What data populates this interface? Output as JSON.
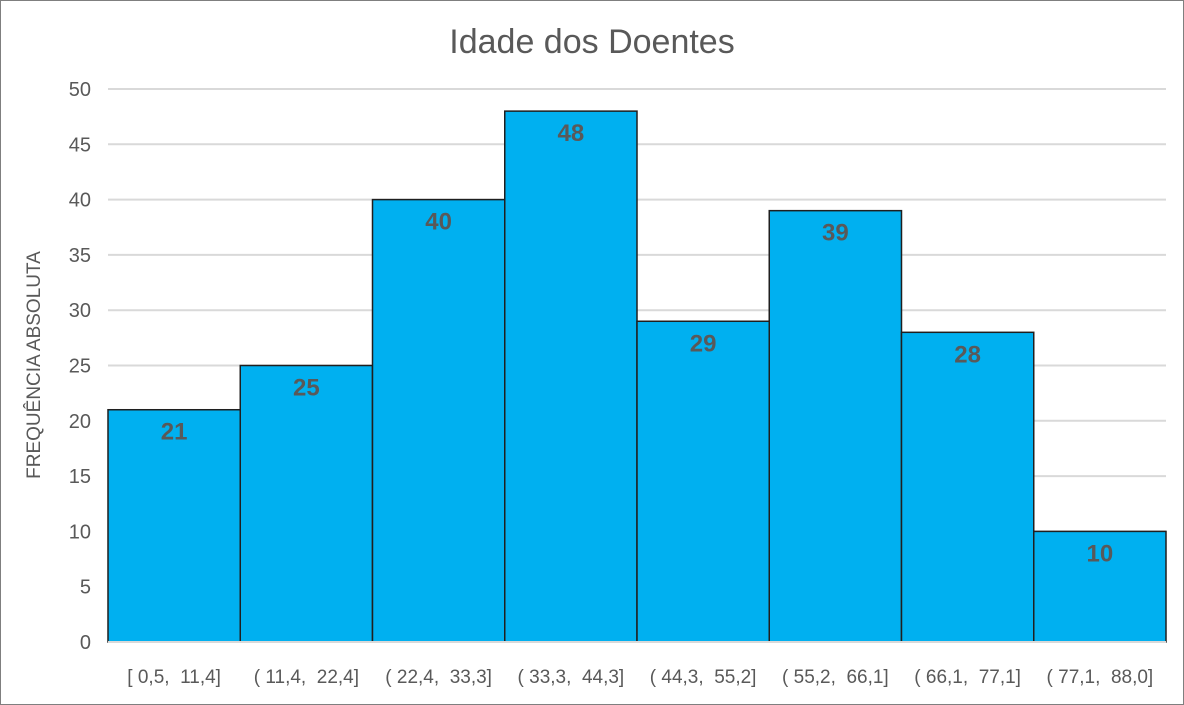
{
  "chart_data": {
    "type": "bar",
    "title": "Idade dos Doentes",
    "xlabel": "",
    "ylabel": "FREQUÊNCIA ABSOLUTA",
    "categories": [
      "[ 0,5,  11,4]",
      "( 11,4,  22,4]",
      "( 22,4,  33,3]",
      "( 33,3,  44,3]",
      "( 44,3,  55,2]",
      "( 55,2,  66,1]",
      "( 66,1,  77,1]",
      "( 77,1,  88,0]"
    ],
    "values": [
      21,
      25,
      40,
      48,
      29,
      39,
      28,
      10
    ],
    "ylim": [
      0,
      50
    ],
    "yticks": [
      0,
      5,
      10,
      15,
      20,
      25,
      30,
      35,
      40,
      45,
      50
    ],
    "grid": true,
    "bar_color": "#00b0f0",
    "bar_edge_color": "#1f1f1f",
    "data_labels": true
  }
}
